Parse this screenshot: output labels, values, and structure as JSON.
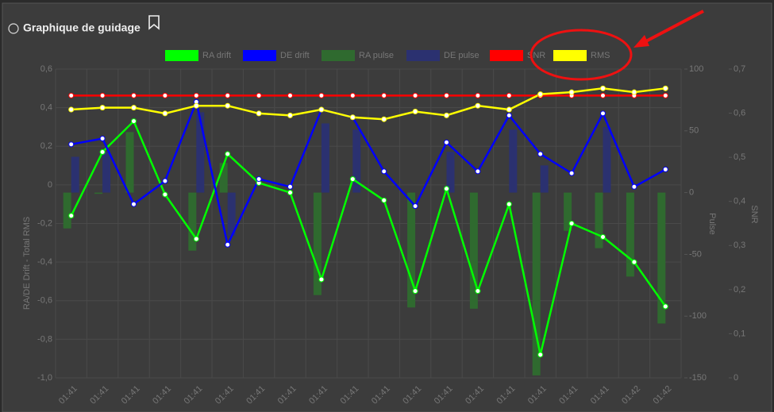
{
  "header": {
    "title": "Graphique de guidage"
  },
  "chart_data": {
    "type": "line",
    "categories": [
      "01:41",
      "01:41",
      "01:41",
      "01:41",
      "01:41",
      "01:41",
      "01:41",
      "01:41",
      "01:41",
      "01:41",
      "01:41",
      "01:41",
      "01:41",
      "01:41",
      "01:41",
      "01:41",
      "01:41",
      "01:41",
      "01:42",
      "01:42"
    ],
    "ylabel": "RA/DE Drift - Total RMS",
    "y2label": "Pulse",
    "y3label": "SNR",
    "ylim": [
      -1.0,
      0.6
    ],
    "yticks": [
      {
        "value": 0.6,
        "label": "0,6"
      },
      {
        "value": 0.4,
        "label": "0,4"
      },
      {
        "value": 0.2,
        "label": "0,2"
      },
      0,
      {
        "value": -0.2,
        "label": "-0,2"
      },
      {
        "value": -0.4,
        "label": "-0,4"
      },
      {
        "value": -0.6,
        "label": "-0,6"
      },
      {
        "value": -0.8,
        "label": "-0,8"
      },
      {
        "value": -1.0,
        "label": "-1,0"
      }
    ],
    "y2lim": [
      -150,
      100
    ],
    "y2ticks": [
      100,
      50,
      0,
      -50,
      -100,
      -150
    ],
    "y3lim": [
      0,
      0.7
    ],
    "y3ticks": [
      {
        "value": 0.7,
        "label": "0,7"
      },
      {
        "value": 0.6,
        "label": "0,6"
      },
      {
        "value": 0.5,
        "label": "0,5"
      },
      {
        "value": 0.4,
        "label": "0,4"
      },
      {
        "value": 0.3,
        "label": "0,3"
      },
      {
        "value": 0.2,
        "label": "0,2"
      },
      {
        "value": 0.1,
        "label": "0,1"
      },
      0
    ],
    "grid": true,
    "legend": "top",
    "series": [
      {
        "name": "RA drift",
        "color": "#00ff00",
        "kind": "line",
        "values": [
          -0.16,
          0.17,
          0.33,
          -0.05,
          -0.28,
          0.16,
          0.01,
          -0.04,
          -0.49,
          0.03,
          -0.08,
          -0.55,
          -0.02,
          -0.55,
          -0.1,
          -0.88,
          -0.2,
          -0.27,
          -0.4,
          -0.63
        ]
      },
      {
        "name": "DE drift",
        "color": "#0000ff",
        "kind": "line",
        "values": [
          0.21,
          0.24,
          -0.1,
          0.02,
          0.43,
          -0.31,
          0.03,
          -0.01,
          0.39,
          0.35,
          0.07,
          -0.11,
          0.22,
          0.07,
          0.36,
          0.16,
          0.06,
          0.37,
          -0.01,
          0.08
        ]
      },
      {
        "name": "RA pulse",
        "color": "#2f6a2f",
        "kind": "bar",
        "axis": "y2",
        "values": [
          -29,
          -1,
          49,
          0,
          -47,
          24,
          0,
          0,
          -83,
          0,
          0,
          -93,
          0,
          -94,
          0,
          -148,
          -31,
          -45,
          -68,
          -106
        ]
      },
      {
        "name": "DE pulse",
        "color": "#2b3170",
        "kind": "bar",
        "axis": "y2",
        "values": [
          29,
          33,
          0,
          0,
          65,
          -35,
          0,
          0,
          56,
          51,
          0,
          0,
          33,
          0,
          51,
          22,
          0,
          53,
          0,
          0
        ]
      },
      {
        "name": "SNR",
        "color": "#ff0000",
        "kind": "line",
        "axis": "y3",
        "values": [
          0.64,
          0.64,
          0.64,
          0.64,
          0.64,
          0.64,
          0.64,
          0.64,
          0.64,
          0.64,
          0.64,
          0.64,
          0.64,
          0.64,
          0.64,
          0.64,
          0.64,
          0.64,
          0.64,
          0.64
        ]
      },
      {
        "name": "RMS",
        "color": "#ffff00",
        "kind": "line",
        "values": [
          0.39,
          0.4,
          0.4,
          0.37,
          0.41,
          0.41,
          0.37,
          0.36,
          0.39,
          0.35,
          0.34,
          0.38,
          0.36,
          0.41,
          0.39,
          0.47,
          0.48,
          0.5,
          0.48,
          0.5
        ]
      }
    ]
  }
}
